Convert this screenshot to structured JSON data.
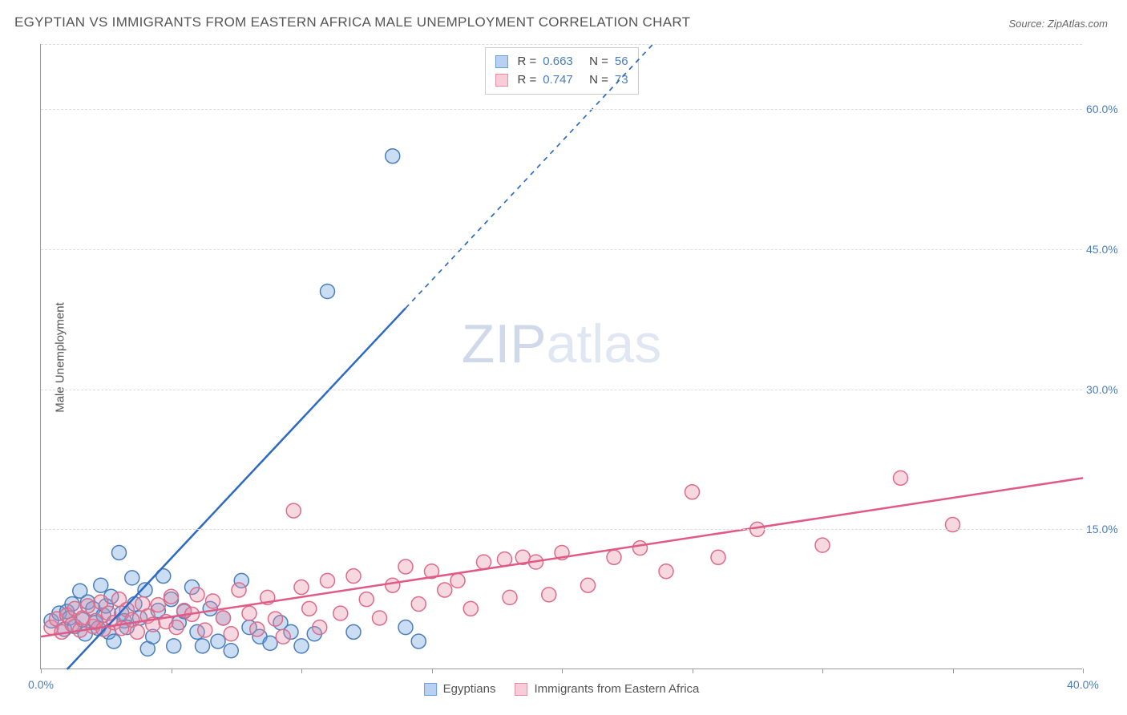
{
  "chart": {
    "type": "scatter",
    "title": "EGYPTIAN VS IMMIGRANTS FROM EASTERN AFRICA MALE UNEMPLOYMENT CORRELATION CHART",
    "source": "Source: ZipAtlas.com",
    "ylabel": "Male Unemployment",
    "watermark": "ZIPatlas",
    "background_color": "#ffffff",
    "grid_color": "#dddddd",
    "axis_color": "#999999",
    "tick_label_color": "#4a7ebb",
    "title_color": "#555555",
    "title_fontsize": 17,
    "ylabel_fontsize": 15,
    "tick_fontsize": 14,
    "xlim": [
      0,
      40
    ],
    "ylim": [
      0,
      67
    ],
    "ytick_values": [
      15,
      30,
      45,
      60
    ],
    "ytick_labels": [
      "15.0%",
      "30.0%",
      "45.0%",
      "60.0%"
    ],
    "xtick_values": [
      0,
      5,
      10,
      15,
      20,
      25,
      30,
      35,
      40
    ],
    "xtick_labels": [
      "0.0%",
      "",
      "",
      "",
      "",
      "",
      "",
      "",
      "40.0%"
    ],
    "marker_radius": 9,
    "marker_fill_opacity": 0.35,
    "marker_stroke_width": 1.5,
    "series": [
      {
        "id": "egyptians",
        "label": "Egyptians",
        "swatch_fill": "#b8d1f0",
        "swatch_border": "#6a9edc",
        "marker_fill": "#6a9edc",
        "marker_stroke": "#4a7ebb",
        "line_color": "#2e6ac4",
        "line_width": 2.5,
        "R": "0.663",
        "N": "56",
        "trend": {
          "x1": 0,
          "y1": -3,
          "x2": 23.5,
          "y2": 67,
          "dashed_after_x": 14.0
        },
        "points": [
          [
            0.4,
            5.2
          ],
          [
            0.7,
            6.0
          ],
          [
            0.9,
            4.3
          ],
          [
            1.0,
            6.2
          ],
          [
            1.1,
            5.5
          ],
          [
            1.2,
            7.0
          ],
          [
            1.3,
            4.6
          ],
          [
            1.5,
            8.4
          ],
          [
            1.6,
            5.3
          ],
          [
            1.7,
            3.8
          ],
          [
            1.8,
            7.2
          ],
          [
            2.0,
            6.5
          ],
          [
            2.1,
            5.0
          ],
          [
            2.2,
            4.4
          ],
          [
            2.3,
            9.0
          ],
          [
            2.4,
            5.8
          ],
          [
            2.5,
            6.8
          ],
          [
            2.6,
            4.0
          ],
          [
            2.7,
            7.8
          ],
          [
            2.8,
            3.0
          ],
          [
            3.0,
            12.5
          ],
          [
            3.1,
            6.0
          ],
          [
            3.2,
            5.2
          ],
          [
            3.3,
            4.5
          ],
          [
            3.5,
            9.8
          ],
          [
            3.6,
            7.0
          ],
          [
            3.8,
            5.5
          ],
          [
            4.0,
            8.5
          ],
          [
            4.1,
            2.2
          ],
          [
            4.3,
            3.5
          ],
          [
            4.5,
            6.3
          ],
          [
            4.7,
            10.0
          ],
          [
            5.0,
            7.5
          ],
          [
            5.1,
            2.5
          ],
          [
            5.3,
            5.0
          ],
          [
            5.5,
            6.2
          ],
          [
            5.8,
            8.8
          ],
          [
            6.0,
            4.0
          ],
          [
            6.2,
            2.5
          ],
          [
            6.5,
            6.5
          ],
          [
            6.8,
            3.0
          ],
          [
            7.0,
            5.5
          ],
          [
            7.3,
            2.0
          ],
          [
            7.7,
            9.5
          ],
          [
            8.0,
            4.5
          ],
          [
            8.4,
            3.5
          ],
          [
            8.8,
            2.8
          ],
          [
            9.2,
            5.0
          ],
          [
            9.6,
            4.0
          ],
          [
            10.0,
            2.5
          ],
          [
            10.5,
            3.8
          ],
          [
            11.0,
            40.5
          ],
          [
            12.0,
            4.0
          ],
          [
            13.5,
            55.0
          ],
          [
            14.0,
            4.5
          ],
          [
            14.5,
            3.0
          ]
        ]
      },
      {
        "id": "eastern_africa",
        "label": "Immigrants from Eastern Africa",
        "swatch_fill": "#f8cdd9",
        "swatch_border": "#e88fa8",
        "marker_fill": "#e88fa8",
        "marker_stroke": "#dd6b8a",
        "line_color": "#e05a85",
        "line_width": 2.5,
        "R": "0.747",
        "N": "73",
        "trend": {
          "x1": 0,
          "y1": 3.5,
          "x2": 40,
          "y2": 20.5,
          "dashed_after_x": 40
        },
        "points": [
          [
            0.4,
            4.5
          ],
          [
            0.6,
            5.4
          ],
          [
            0.8,
            4.0
          ],
          [
            1.0,
            5.8
          ],
          [
            1.2,
            4.8
          ],
          [
            1.3,
            6.5
          ],
          [
            1.5,
            4.2
          ],
          [
            1.6,
            5.5
          ],
          [
            1.8,
            6.8
          ],
          [
            2.0,
            4.6
          ],
          [
            2.1,
            5.2
          ],
          [
            2.3,
            7.2
          ],
          [
            2.4,
            4.3
          ],
          [
            2.6,
            6.0
          ],
          [
            2.8,
            5.0
          ],
          [
            3.0,
            7.5
          ],
          [
            3.1,
            4.4
          ],
          [
            3.3,
            6.4
          ],
          [
            3.5,
            5.3
          ],
          [
            3.7,
            4.0
          ],
          [
            3.9,
            7.0
          ],
          [
            4.1,
            5.7
          ],
          [
            4.3,
            4.8
          ],
          [
            4.5,
            6.9
          ],
          [
            4.8,
            5.1
          ],
          [
            5.0,
            7.8
          ],
          [
            5.2,
            4.5
          ],
          [
            5.5,
            6.3
          ],
          [
            5.8,
            5.9
          ],
          [
            6.0,
            8.0
          ],
          [
            6.3,
            4.2
          ],
          [
            6.6,
            7.3
          ],
          [
            7.0,
            5.5
          ],
          [
            7.3,
            3.8
          ],
          [
            7.6,
            8.5
          ],
          [
            8.0,
            6.0
          ],
          [
            8.3,
            4.3
          ],
          [
            8.7,
            7.7
          ],
          [
            9.0,
            5.4
          ],
          [
            9.3,
            3.5
          ],
          [
            9.7,
            17.0
          ],
          [
            10.0,
            8.8
          ],
          [
            10.3,
            6.5
          ],
          [
            10.7,
            4.5
          ],
          [
            11.0,
            9.5
          ],
          [
            11.5,
            6.0
          ],
          [
            12.0,
            10.0
          ],
          [
            12.5,
            7.5
          ],
          [
            13.0,
            5.5
          ],
          [
            13.5,
            9.0
          ],
          [
            14.0,
            11.0
          ],
          [
            14.5,
            7.0
          ],
          [
            15.0,
            10.5
          ],
          [
            15.5,
            8.5
          ],
          [
            16.0,
            9.5
          ],
          [
            16.5,
            6.5
          ],
          [
            17.0,
            11.5
          ],
          [
            17.8,
            11.8
          ],
          [
            18.0,
            7.7
          ],
          [
            18.5,
            12.0
          ],
          [
            19.0,
            11.5
          ],
          [
            19.5,
            8.0
          ],
          [
            20.0,
            12.5
          ],
          [
            21.0,
            9.0
          ],
          [
            22.0,
            12.0
          ],
          [
            23.0,
            13.0
          ],
          [
            24.0,
            10.5
          ],
          [
            25.0,
            19.0
          ],
          [
            26.0,
            12.0
          ],
          [
            27.5,
            15.0
          ],
          [
            30.0,
            13.3
          ],
          [
            33.0,
            20.5
          ],
          [
            35.0,
            15.5
          ]
        ]
      }
    ]
  }
}
